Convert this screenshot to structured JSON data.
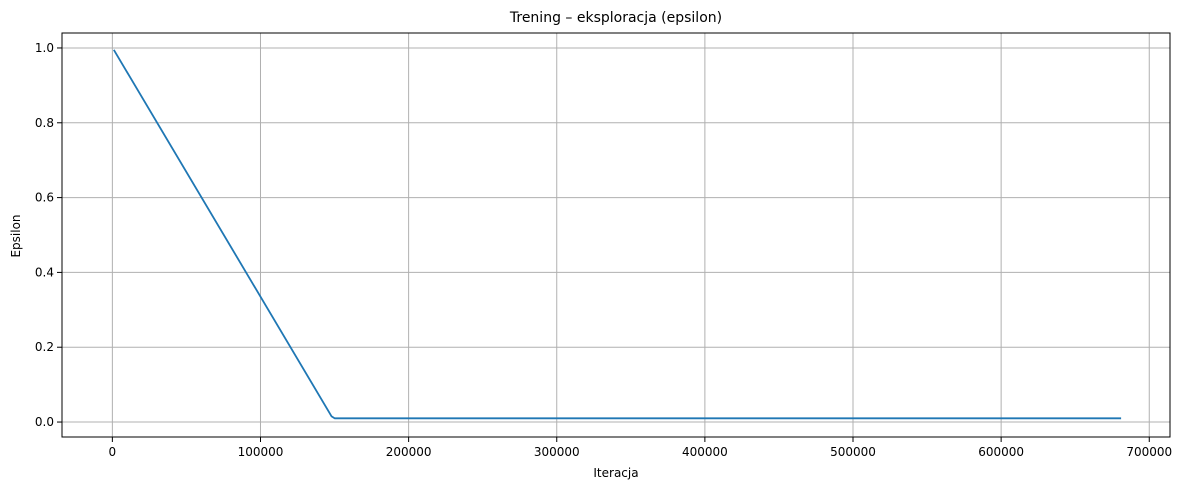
{
  "chart_data": {
    "type": "line",
    "title": "Trening – eksploracja (epsilon)",
    "xlabel": "Iteracja",
    "ylabel": "Epsilon",
    "xlim": [
      -34000,
      714000
    ],
    "ylim": [
      -0.04,
      1.04
    ],
    "xticks": [
      0,
      100000,
      200000,
      300000,
      400000,
      500000,
      600000,
      700000
    ],
    "xtick_labels": [
      "0",
      "100000",
      "200000",
      "300000",
      "400000",
      "500000",
      "600000",
      "700000"
    ],
    "yticks": [
      0.0,
      0.2,
      0.4,
      0.6,
      0.8,
      1.0
    ],
    "ytick_labels": [
      "0.0",
      "0.2",
      "0.4",
      "0.6",
      "0.8",
      "1.0"
    ],
    "grid": true,
    "series": [
      {
        "color": "#1f77b4",
        "x": [
          1000,
          148000,
          150000,
          681000
        ],
        "y": [
          0.995,
          0.015,
          0.01,
          0.01
        ]
      }
    ]
  }
}
